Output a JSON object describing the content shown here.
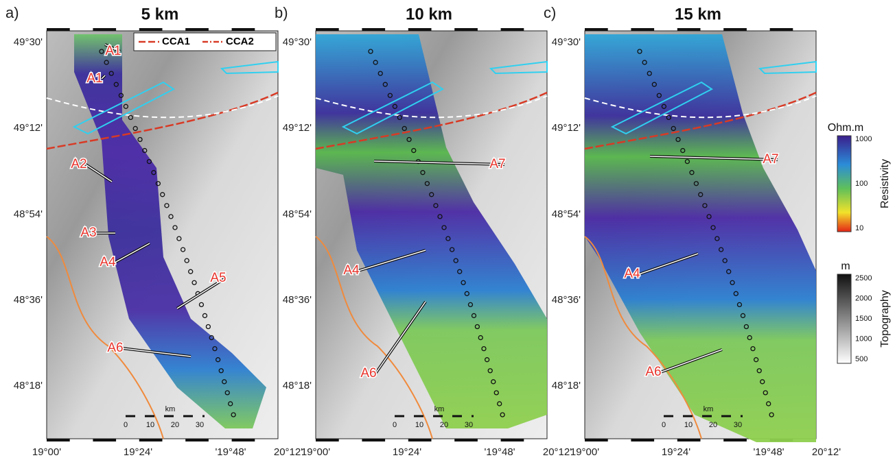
{
  "panels": [
    {
      "letter": "a)",
      "title": "5 km",
      "lat_labels": [
        "49°30'",
        "49°12'",
        "48°54'",
        "48°36'",
        "48°18'"
      ],
      "lon_labels": [
        "19°00'",
        "19°24'",
        "'19°48'",
        "20°12'"
      ],
      "annotations": [
        "A1",
        "A1",
        "A2",
        "A3",
        "A4",
        "A5",
        "A6"
      ]
    },
    {
      "letter": "b)",
      "title": "10 km",
      "lat_labels": [
        "49°30'",
        "49°12'",
        "48°54'",
        "48°36'",
        "48°18'"
      ],
      "lon_labels": [
        "19°00'",
        "19°24'",
        "'19°48'",
        "20°12'"
      ],
      "annotations": [
        "A4",
        "A6",
        "A7"
      ]
    },
    {
      "letter": "c)",
      "title": "15 km",
      "lat_labels": [
        "49°30'",
        "49°12'",
        "48°54'",
        "48°36'",
        "48°18'"
      ],
      "lon_labels": [
        "19°00'",
        "19°24'",
        "'19°48'",
        "20°12'"
      ],
      "annotations": [
        "A4",
        "A6",
        "A7"
      ]
    }
  ],
  "legend": {
    "items": [
      "CCA1",
      "CCA2"
    ]
  },
  "resistivity_bar": {
    "unit": "Ohm.m",
    "label": "Resistivity",
    "ticks": [
      "1000",
      "100",
      "10"
    ]
  },
  "topography_bar": {
    "unit": "m",
    "label": "Topography",
    "ticks": [
      "2500",
      "2000",
      "1500",
      "1000",
      "500"
    ]
  },
  "scale_bar": {
    "unit": "km",
    "ticks": [
      "0",
      "10",
      "20",
      "30"
    ]
  }
}
